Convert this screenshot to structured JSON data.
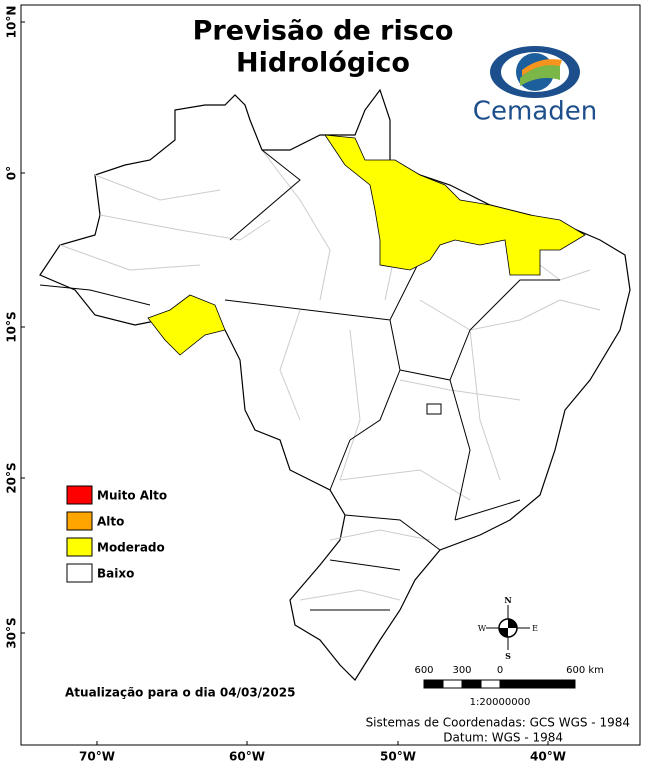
{
  "title": [
    "Previsão de risco",
    "Hidrológico"
  ],
  "logo": "Cemaden",
  "legend": [
    {
      "label": "Muito Alto",
      "color": "#ff0000"
    },
    {
      "label": "Alto",
      "color": "#ffa500"
    },
    {
      "label": "Moderado",
      "color": "#ffff00"
    },
    {
      "label": "Baixo",
      "color": "#ffffff"
    }
  ],
  "lat_labels": [
    "10°N",
    "0°",
    "10°S",
    "20°S",
    "30°S"
  ],
  "lon_labels": [
    "70°W",
    "60°W",
    "50°W",
    "40°W"
  ],
  "compass": {
    "n": "N",
    "s": "S",
    "e": "E",
    "w": "W"
  },
  "scale_bar": {
    "labels": [
      "600",
      "300",
      "0",
      "600 km"
    ],
    "ratio": "1:20000000"
  },
  "update": "Atualização para o dia 04/03/2025",
  "crs": "Sistemas de Coordenadas: GCS WGS - 1984",
  "datum": "Datum: WGS - 1984"
}
